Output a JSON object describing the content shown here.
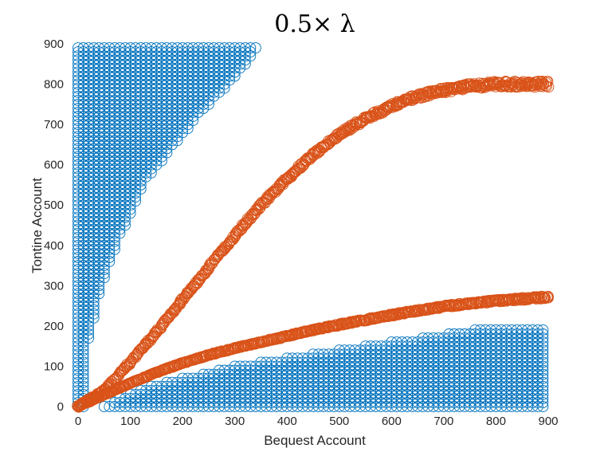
{
  "chart_data": {
    "type": "scatter",
    "title": "0.5× λ",
    "xlabel": "Bequest Account",
    "ylabel": "Tontine Account",
    "xlim": [
      0,
      900
    ],
    "ylim": [
      0,
      900
    ],
    "x_ticks": [
      "0",
      "100",
      "200",
      "300",
      "400",
      "500",
      "600",
      "700",
      "800",
      "900"
    ],
    "y_ticks": [
      "0",
      "100",
      "200",
      "300",
      "400",
      "500",
      "600",
      "700",
      "800",
      "900"
    ],
    "grid": false,
    "marker": "open-circle",
    "colors": {
      "blue": "#0072BD",
      "orange": "#D95319"
    },
    "regions": [
      {
        "name": "region-upper-left",
        "color": "blue",
        "fill": "grid",
        "polygon": [
          [
            0,
            0
          ],
          [
            12,
            0
          ],
          [
            12,
            120
          ],
          [
            45,
            300
          ],
          [
            80,
            420
          ],
          [
            130,
            560
          ],
          [
            180,
            640
          ],
          [
            230,
            720
          ],
          [
            290,
            800
          ],
          [
            335,
            870
          ],
          [
            350,
            900
          ],
          [
            0,
            900
          ]
        ]
      },
      {
        "name": "region-lower-right",
        "color": "blue",
        "fill": "grid",
        "polygon": [
          [
            50,
            0
          ],
          [
            900,
            0
          ],
          [
            900,
            195
          ],
          [
            780,
            195
          ],
          [
            600,
            160
          ],
          [
            450,
            130
          ],
          [
            300,
            100
          ],
          [
            150,
            55
          ],
          [
            80,
            20
          ]
        ]
      }
    ],
    "curves": [
      {
        "name": "curve-upper",
        "color": "orange",
        "band": 12,
        "points": [
          [
            0,
            0
          ],
          [
            50,
            40
          ],
          [
            100,
            110
          ],
          [
            150,
            185
          ],
          [
            200,
            265
          ],
          [
            250,
            345
          ],
          [
            300,
            425
          ],
          [
            350,
            500
          ],
          [
            400,
            565
          ],
          [
            450,
            625
          ],
          [
            500,
            675
          ],
          [
            550,
            715
          ],
          [
            600,
            745
          ],
          [
            650,
            770
          ],
          [
            700,
            785
          ],
          [
            750,
            795
          ],
          [
            800,
            800
          ],
          [
            850,
            800
          ],
          [
            900,
            800
          ]
        ]
      },
      {
        "name": "curve-lower",
        "color": "orange",
        "band": 5,
        "points": [
          [
            0,
            0
          ],
          [
            50,
            30
          ],
          [
            100,
            58
          ],
          [
            150,
            85
          ],
          [
            200,
            108
          ],
          [
            250,
            128
          ],
          [
            300,
            145
          ],
          [
            350,
            160
          ],
          [
            400,
            175
          ],
          [
            450,
            190
          ],
          [
            500,
            203
          ],
          [
            550,
            215
          ],
          [
            600,
            227
          ],
          [
            650,
            238
          ],
          [
            700,
            248
          ],
          [
            750,
            256
          ],
          [
            800,
            262
          ],
          [
            850,
            267
          ],
          [
            900,
            272
          ]
        ]
      }
    ]
  }
}
